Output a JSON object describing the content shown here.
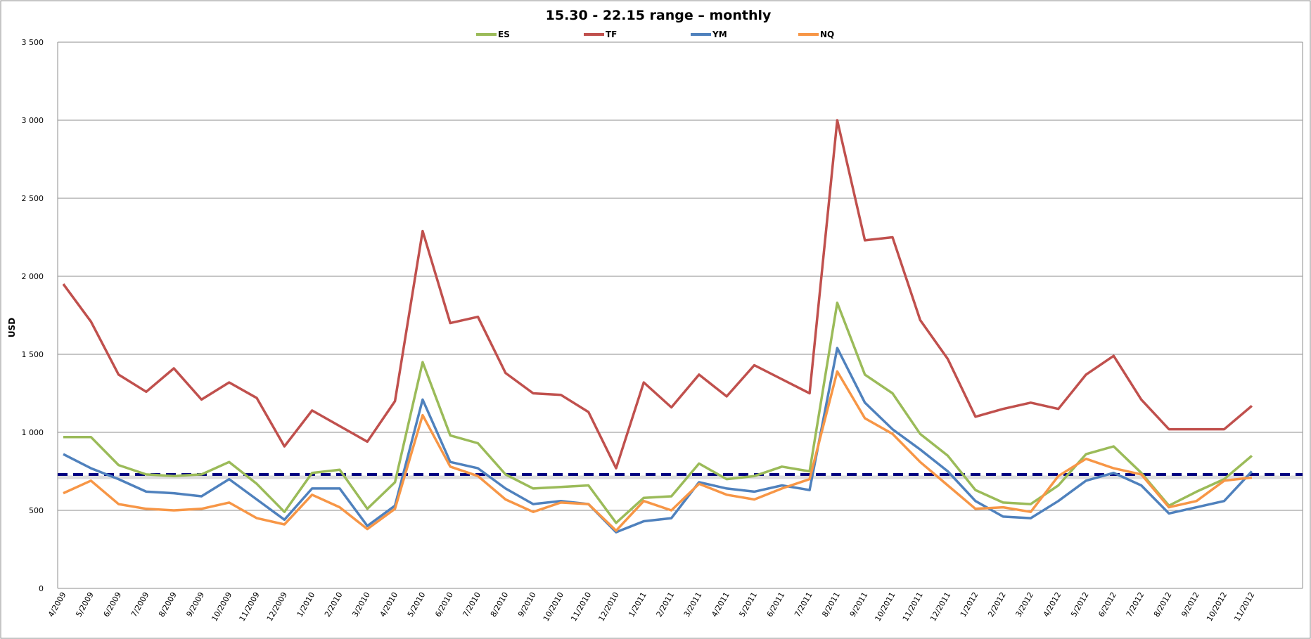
{
  "chart_data": {
    "type": "line",
    "title": "15.30 - 22.15 range – monthly",
    "xlabel": "",
    "ylabel": "USD",
    "ylim": [
      0,
      3500
    ],
    "yticks": [
      0,
      500,
      1000,
      1500,
      2000,
      2500,
      3000,
      3500
    ],
    "ytick_labels": [
      "0",
      "500",
      "1 000",
      "1 500",
      "2 000",
      "2 500",
      "3 000",
      "3 500"
    ],
    "grid": true,
    "legend_position": "top",
    "categories": [
      "4/2009",
      "5/2009",
      "6/2009",
      "7/2009",
      "8/2009",
      "9/2009",
      "10/2009",
      "11/2009",
      "12/2009",
      "1/2010",
      "2/2010",
      "3/2010",
      "4/2010",
      "5/2010",
      "6/2010",
      "7/2010",
      "8/2010",
      "9/2010",
      "10/2010",
      "11/2010",
      "12/2010",
      "1/2011",
      "2/2011",
      "3/2011",
      "4/2011",
      "5/2011",
      "6/2011",
      "7/2011",
      "8/2011",
      "9/2011",
      "10/2011",
      "11/2011",
      "12/2011",
      "1/2012",
      "2/2012",
      "3/2012",
      "4/2012",
      "5/2012",
      "6/2012",
      "7/2012",
      "8/2012",
      "9/2012",
      "10/2012",
      "11/2012"
    ],
    "series": [
      {
        "name": "ES",
        "color": "#9BBB59",
        "values": [
          970,
          970,
          790,
          730,
          720,
          730,
          810,
          670,
          490,
          740,
          760,
          510,
          680,
          1450,
          980,
          930,
          730,
          640,
          650,
          660,
          420,
          580,
          590,
          800,
          700,
          720,
          780,
          750,
          1830,
          1370,
          1250,
          990,
          850,
          630,
          550,
          540,
          660,
          860,
          910,
          740,
          530,
          620,
          700,
          850
        ]
      },
      {
        "name": "TF",
        "color": "#C0504D",
        "values": [
          1950,
          1710,
          1370,
          1260,
          1410,
          1210,
          1320,
          1220,
          910,
          1140,
          1040,
          940,
          1200,
          2290,
          1700,
          1740,
          1380,
          1250,
          1240,
          1130,
          770,
          1320,
          1160,
          1370,
          1230,
          1430,
          1340,
          1250,
          3000,
          2230,
          2250,
          1720,
          1470,
          1100,
          1150,
          1190,
          1150,
          1370,
          1490,
          1210,
          1020,
          1020,
          1020,
          1170
        ]
      },
      {
        "name": "YM",
        "color": "#4F81BD",
        "values": [
          860,
          770,
          700,
          620,
          610,
          590,
          700,
          570,
          440,
          640,
          640,
          400,
          530,
          1210,
          810,
          770,
          640,
          540,
          560,
          540,
          360,
          430,
          450,
          680,
          640,
          620,
          660,
          630,
          1540,
          1190,
          1020,
          890,
          750,
          560,
          460,
          450,
          560,
          690,
          740,
          660,
          480,
          520,
          560,
          750
        ]
      },
      {
        "name": "NQ",
        "color": "#F79646",
        "values": [
          610,
          690,
          540,
          510,
          500,
          510,
          550,
          450,
          410,
          600,
          520,
          380,
          510,
          1110,
          780,
          720,
          570,
          490,
          550,
          540,
          370,
          560,
          500,
          670,
          600,
          570,
          640,
          700,
          1390,
          1090,
          990,
          810,
          660,
          510,
          520,
          490,
          720,
          830,
          770,
          730,
          520,
          560,
          690,
          710
        ]
      }
    ],
    "reference_line": {
      "value": 730,
      "color": "#000080",
      "style": "dashed"
    }
  }
}
